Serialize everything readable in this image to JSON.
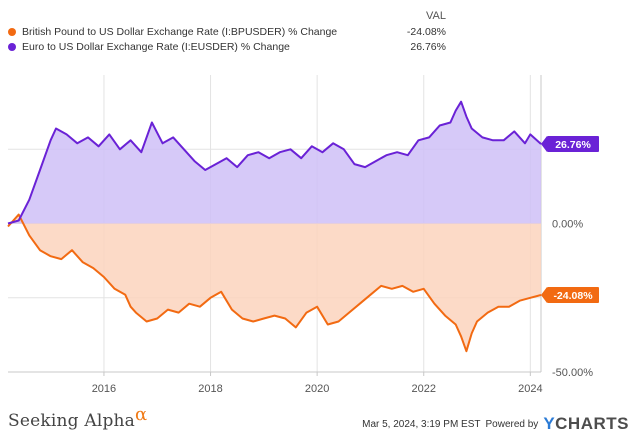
{
  "legend": {
    "header": "VAL",
    "items": [
      {
        "name": "British Pound to US Dollar Exchange Rate (I:BPUSDER) % Change",
        "value": "-24.08%",
        "color": "#f26a12"
      },
      {
        "name": "Euro to US Dollar Exchange Rate (I:EUSDER) % Change",
        "value": "26.76%",
        "color": "#6a22d6"
      }
    ]
  },
  "footer": {
    "brand": "Seeking Alpha",
    "brand_symbol": "α",
    "timestamp": "Mar 5, 2024, 3:19 PM EST",
    "powered_by": "Powered by",
    "ycharts_y": "Y",
    "ycharts_rest": "CHARTS"
  },
  "chart_data": {
    "type": "area",
    "x_ticks": [
      "2016",
      "2018",
      "2020",
      "2022",
      "2024"
    ],
    "y_ticks": [
      {
        "value": 0,
        "label": "0.00%"
      },
      {
        "value": -50,
        "label": "-50.00%"
      }
    ],
    "ylim": [
      -50,
      50
    ],
    "xlim": [
      2014.2,
      2024.2
    ],
    "gridlines": true,
    "end_labels": [
      {
        "series": 1,
        "label": "26.76%",
        "value": 26.76,
        "color": "#6a22d6"
      },
      {
        "series": 0,
        "label": "-24.08%",
        "value": -24.08,
        "color": "#f26a12"
      }
    ],
    "series": [
      {
        "name": "British Pound to US Dollar Exchange Rate (I:BPUSDER) % Change",
        "color": "#f26a12",
        "fill": "#fbd3bd",
        "x": [
          2014.2,
          2014.4,
          2014.6,
          2014.8,
          2015.0,
          2015.2,
          2015.4,
          2015.6,
          2015.8,
          2016.0,
          2016.2,
          2016.4,
          2016.5,
          2016.6,
          2016.8,
          2017.0,
          2017.2,
          2017.4,
          2017.6,
          2017.8,
          2018.0,
          2018.2,
          2018.4,
          2018.6,
          2018.8,
          2019.0,
          2019.2,
          2019.4,
          2019.6,
          2019.8,
          2020.0,
          2020.2,
          2020.4,
          2020.6,
          2020.8,
          2021.0,
          2021.2,
          2021.4,
          2021.6,
          2021.8,
          2022.0,
          2022.2,
          2022.4,
          2022.6,
          2022.7,
          2022.8,
          2022.9,
          2023.0,
          2023.2,
          2023.4,
          2023.6,
          2023.8,
          2024.0,
          2024.2
        ],
        "y": [
          -1,
          3,
          -4,
          -9,
          -11,
          -12,
          -9,
          -13,
          -15,
          -18,
          -22,
          -24,
          -28,
          -30,
          -33,
          -32,
          -29,
          -30,
          -27,
          -28,
          -25,
          -23,
          -29,
          -32,
          -33,
          -32,
          -31,
          -32,
          -35,
          -30,
          -28,
          -34,
          -33,
          -30,
          -27,
          -24,
          -21,
          -22,
          -21,
          -23,
          -22,
          -27,
          -31,
          -34,
          -38,
          -43,
          -37,
          -33,
          -30,
          -28,
          -28,
          -26,
          -25,
          -24.08
        ]
      },
      {
        "name": "Euro to US Dollar Exchange Rate (I:EUSDER) % Change",
        "color": "#6a22d6",
        "fill": "#cfbff7",
        "x": [
          2014.2,
          2014.4,
          2014.6,
          2014.8,
          2015.0,
          2015.1,
          2015.3,
          2015.5,
          2015.7,
          2015.9,
          2016.1,
          2016.3,
          2016.5,
          2016.7,
          2016.9,
          2017.1,
          2017.3,
          2017.5,
          2017.7,
          2017.9,
          2018.1,
          2018.3,
          2018.5,
          2018.7,
          2018.9,
          2019.1,
          2019.3,
          2019.5,
          2019.7,
          2019.9,
          2020.1,
          2020.3,
          2020.5,
          2020.7,
          2020.9,
          2021.1,
          2021.3,
          2021.5,
          2021.7,
          2021.9,
          2022.1,
          2022.3,
          2022.5,
          2022.6,
          2022.7,
          2022.8,
          2022.9,
          2023.1,
          2023.3,
          2023.5,
          2023.7,
          2023.9,
          2024.0,
          2024.2
        ],
        "y": [
          0,
          1,
          8,
          18,
          28,
          32,
          30,
          27,
          29,
          26,
          30,
          25,
          28,
          24,
          34,
          27,
          29,
          25,
          21,
          18,
          20,
          22,
          19,
          23,
          24,
          22,
          24,
          25,
          22,
          26,
          24,
          27,
          25,
          20,
          19,
          21,
          23,
          24,
          23,
          28,
          29,
          33,
          34,
          38,
          41,
          36,
          32,
          29,
          28,
          28,
          31,
          27,
          30,
          26.76
        ]
      }
    ]
  }
}
